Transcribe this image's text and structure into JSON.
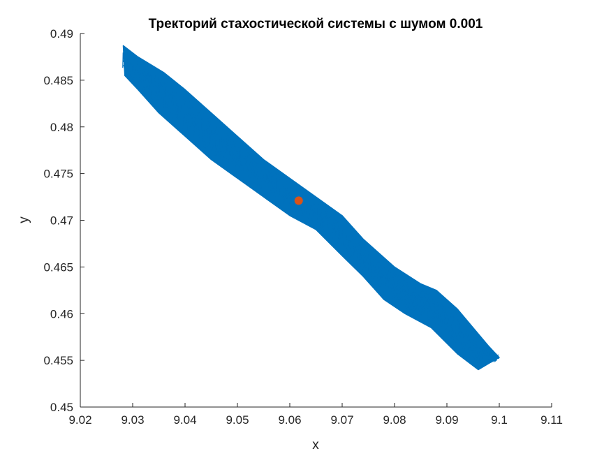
{
  "chart_data": {
    "type": "line",
    "title": "Тректорий стахостической системы с шумом 0.001",
    "xlabel": "x",
    "ylabel": "y",
    "xlim": [
      9.02,
      9.11
    ],
    "ylim": [
      0.45,
      0.49
    ],
    "xticks": [
      9.02,
      9.03,
      9.04,
      9.05,
      9.06,
      9.07,
      9.08,
      9.09,
      9.1,
      9.11
    ],
    "xtick_labels": [
      "9.02",
      "9.03",
      "9.04",
      "9.05",
      "9.06",
      "9.07",
      "9.08",
      "9.09",
      "9.1",
      "9.11"
    ],
    "yticks": [
      0.45,
      0.455,
      0.46,
      0.465,
      0.47,
      0.475,
      0.48,
      0.485,
      0.49
    ],
    "ytick_labels": [
      "0.45",
      "0.455",
      "0.46",
      "0.465",
      "0.47",
      "0.475",
      "0.48",
      "0.485",
      "0.49"
    ],
    "grid": false,
    "series": [
      {
        "kind": "trajectory",
        "color": "#0072BD",
        "band_outline": [
          [
            9.0282,
            0.4887
          ],
          [
            9.031,
            0.4875
          ],
          [
            9.036,
            0.4858
          ],
          [
            9.04,
            0.484
          ],
          [
            9.045,
            0.4815
          ],
          [
            9.05,
            0.479
          ],
          [
            9.055,
            0.4765
          ],
          [
            9.06,
            0.4745
          ],
          [
            9.065,
            0.4725
          ],
          [
            9.07,
            0.4705
          ],
          [
            9.074,
            0.468
          ],
          [
            9.08,
            0.465
          ],
          [
            9.085,
            0.4632
          ],
          [
            9.088,
            0.4625
          ],
          [
            9.092,
            0.4605
          ],
          [
            9.098,
            0.4565
          ],
          [
            9.1,
            0.4553
          ],
          [
            9.099,
            0.455
          ],
          [
            9.096,
            0.454
          ],
          [
            9.092,
            0.4557
          ],
          [
            9.087,
            0.4585
          ],
          [
            9.082,
            0.46
          ],
          [
            9.078,
            0.4615
          ],
          [
            9.074,
            0.464
          ],
          [
            9.07,
            0.4662
          ],
          [
            9.065,
            0.469
          ],
          [
            9.06,
            0.4705
          ],
          [
            9.055,
            0.4725
          ],
          [
            9.05,
            0.4745
          ],
          [
            9.045,
            0.4765
          ],
          [
            9.04,
            0.479
          ],
          [
            9.035,
            0.4815
          ],
          [
            9.031,
            0.484
          ],
          [
            9.0285,
            0.4855
          ]
        ]
      },
      {
        "kind": "equilibrium",
        "color": "#D95319",
        "points": [
          {
            "x": 9.0617,
            "y": 0.4721
          }
        ]
      }
    ]
  }
}
